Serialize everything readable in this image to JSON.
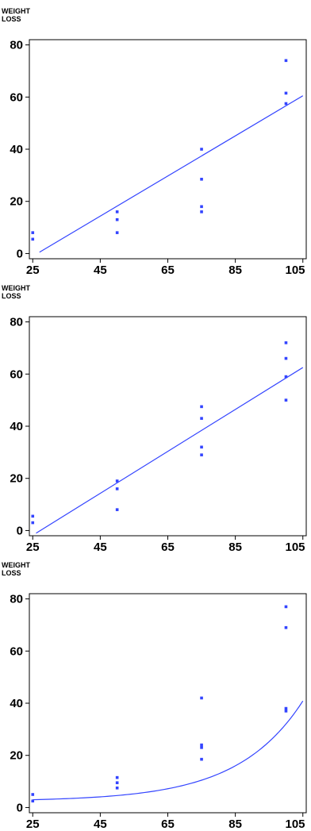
{
  "chart_data": [
    {
      "type": "scatter",
      "ylabel": [
        "WEIGHT",
        "LOSS"
      ],
      "xlabel": "",
      "xlim": [
        24,
        106
      ],
      "ylim": [
        -2,
        82
      ],
      "xticks": [
        25,
        45,
        65,
        85,
        105
      ],
      "yticks": [
        0,
        20,
        40,
        60,
        80
      ],
      "points": [
        {
          "x": 25,
          "y": 8
        },
        {
          "x": 25,
          "y": 5.5
        },
        {
          "x": 50,
          "y": 16
        },
        {
          "x": 50,
          "y": 13
        },
        {
          "x": 50,
          "y": 8
        },
        {
          "x": 75,
          "y": 40
        },
        {
          "x": 75,
          "y": 28.5
        },
        {
          "x": 75,
          "y": 18
        },
        {
          "x": 75,
          "y": 16
        },
        {
          "x": 100,
          "y": 74
        },
        {
          "x": 100,
          "y": 61.5
        },
        {
          "x": 100,
          "y": 57.5
        }
      ],
      "fit": {
        "kind": "linear",
        "x": [
          27,
          105
        ],
        "y": [
          0.5,
          60.5
        ]
      },
      "color": "#3344ff"
    },
    {
      "type": "scatter",
      "ylabel": [
        "WEIGHT",
        "LOSS"
      ],
      "xlabel": "",
      "xlim": [
        24,
        106
      ],
      "ylim": [
        -2,
        82
      ],
      "xticks": [
        25,
        45,
        65,
        85,
        105
      ],
      "yticks": [
        0,
        20,
        40,
        60,
        80
      ],
      "points": [
        {
          "x": 25,
          "y": 5.5
        },
        {
          "x": 25,
          "y": 3
        },
        {
          "x": 50,
          "y": 19
        },
        {
          "x": 50,
          "y": 16
        },
        {
          "x": 50,
          "y": 8
        },
        {
          "x": 75,
          "y": 47.5
        },
        {
          "x": 75,
          "y": 43
        },
        {
          "x": 75,
          "y": 32
        },
        {
          "x": 75,
          "y": 29
        },
        {
          "x": 100,
          "y": 72
        },
        {
          "x": 100,
          "y": 66
        },
        {
          "x": 100,
          "y": 59
        },
        {
          "x": 100,
          "y": 50
        }
      ],
      "fit": {
        "kind": "linear",
        "x": [
          26,
          105
        ],
        "y": [
          -1,
          62.5
        ]
      },
      "color": "#3344ff"
    },
    {
      "type": "scatter",
      "ylabel": [
        "WEIGHT",
        "LOSS"
      ],
      "xlabel": "",
      "xlim": [
        24,
        106
      ],
      "ylim": [
        -2,
        82
      ],
      "xticks": [
        25,
        45,
        65,
        85,
        105
      ],
      "yticks": [
        0,
        20,
        40,
        60,
        80
      ],
      "points": [
        {
          "x": 25,
          "y": 5
        },
        {
          "x": 25,
          "y": 2.5
        },
        {
          "x": 50,
          "y": 11.5
        },
        {
          "x": 50,
          "y": 9.5
        },
        {
          "x": 50,
          "y": 7.5
        },
        {
          "x": 75,
          "y": 42
        },
        {
          "x": 75,
          "y": 24
        },
        {
          "x": 75,
          "y": 23
        },
        {
          "x": 75,
          "y": 18.5
        },
        {
          "x": 100,
          "y": 77
        },
        {
          "x": 100,
          "y": 69
        },
        {
          "x": 100,
          "y": 38
        },
        {
          "x": 100,
          "y": 37
        }
      ],
      "fit": {
        "kind": "exponential",
        "x_start": 25,
        "x_end": 105,
        "a": 0.6,
        "b": 0.052,
        "c": 2.4
      },
      "color": "#3344ff"
    }
  ]
}
